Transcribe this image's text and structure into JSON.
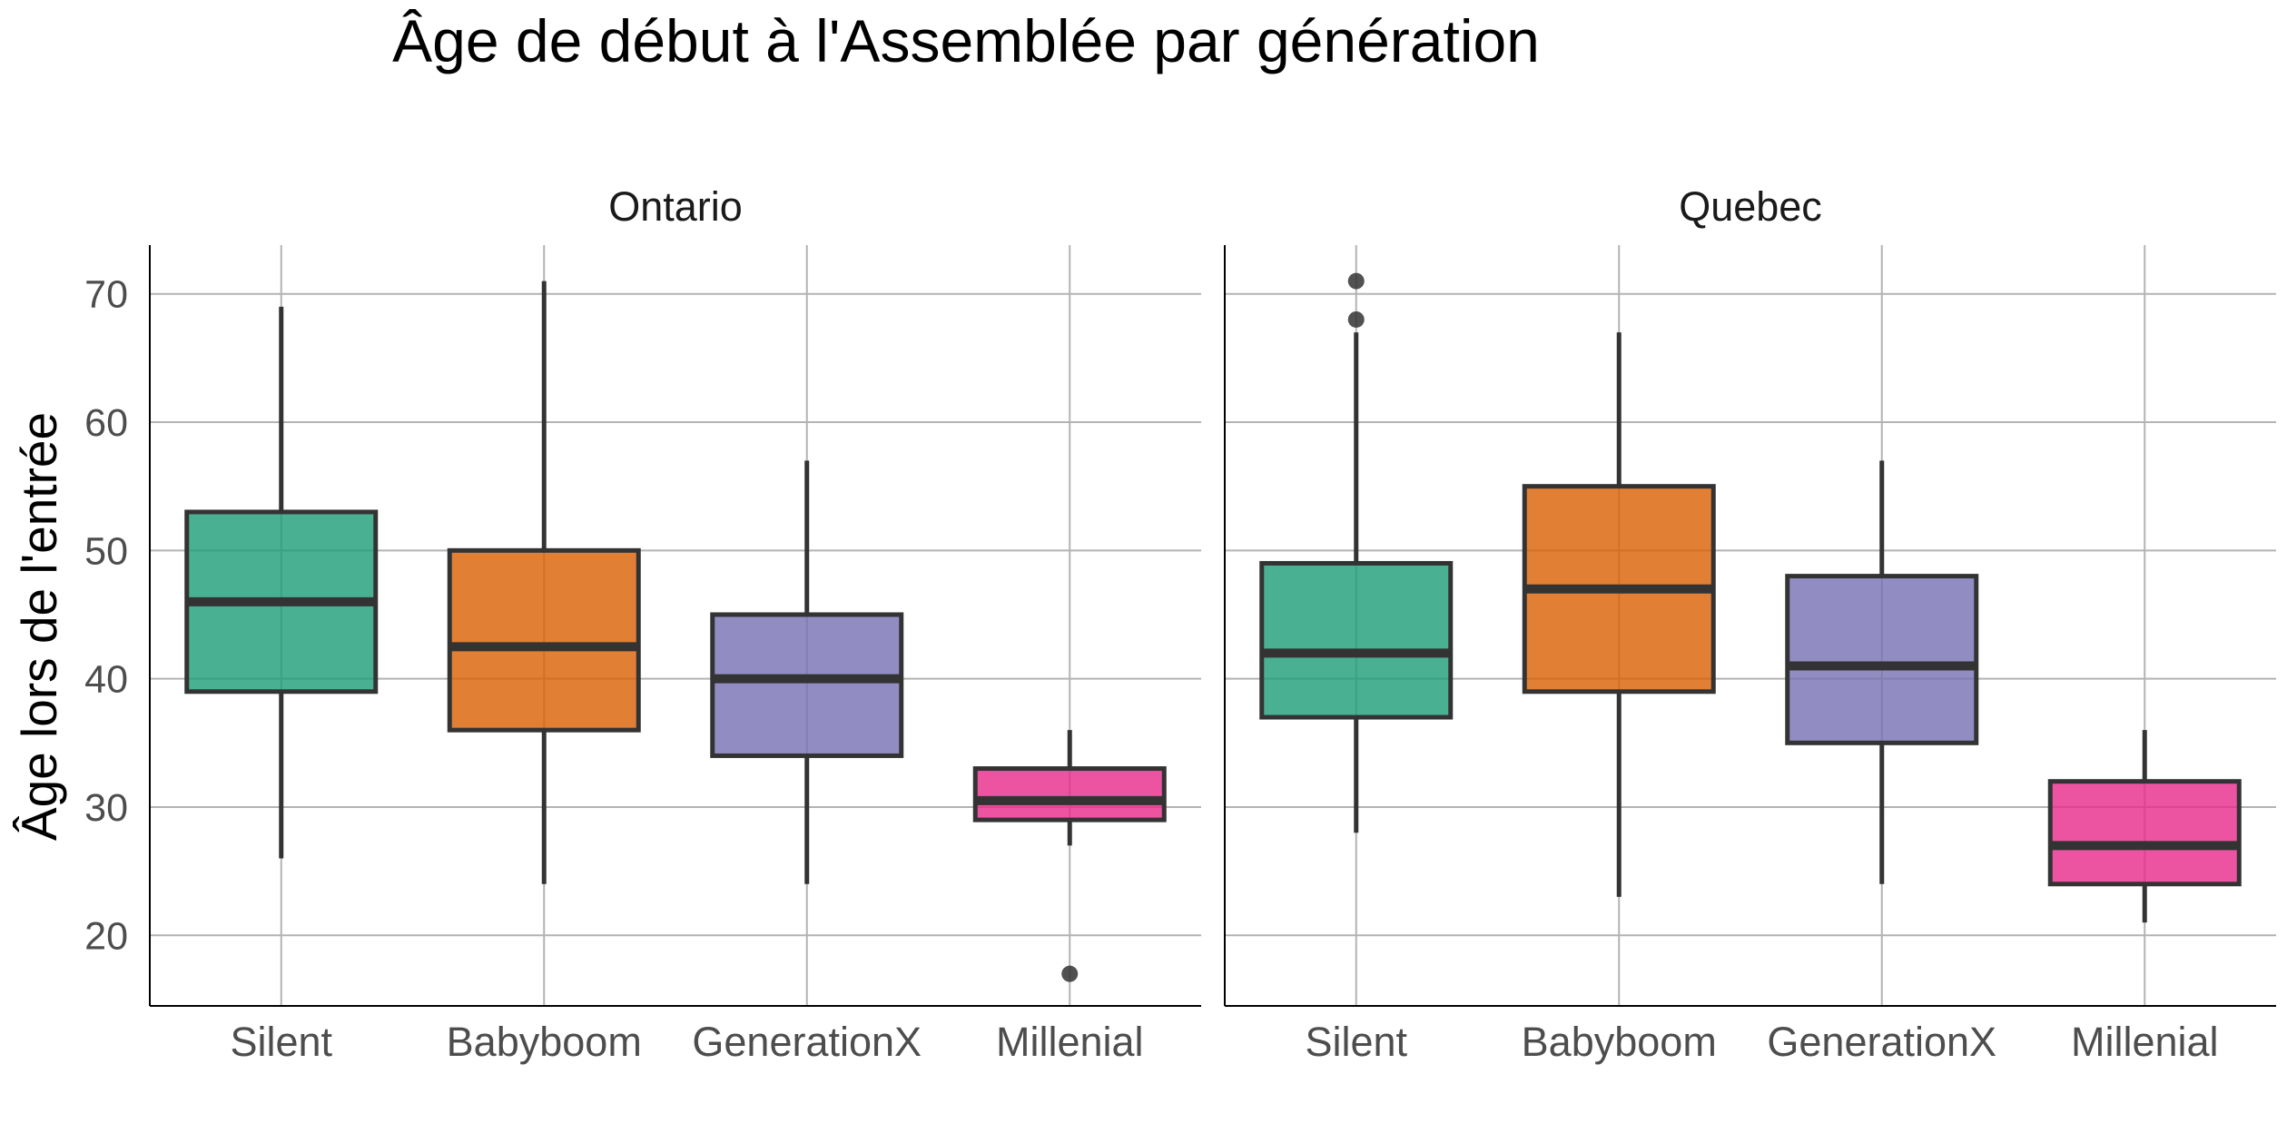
{
  "chart_data": {
    "type": "boxplot",
    "title": "Âge de début à l'Assemblée par génération",
    "ylabel": "Âge lors de l'entrée",
    "xlabel": "",
    "ylim": [
      14.5,
      73.8
    ],
    "yticks": [
      "20",
      "30",
      "40",
      "50",
      "60",
      "70"
    ],
    "grid": true,
    "legend": "none",
    "categories": [
      "Silent",
      "Babyboom",
      "GenerationX",
      "Millenial"
    ],
    "colors": {
      "Silent": "#1b9e77",
      "Babyboom": "#d95f02",
      "GenerationX": "#7570b3",
      "Millenial": "#e7298a"
    },
    "panels": [
      {
        "name": "Ontario",
        "boxes": [
          {
            "category": "Silent",
            "min": 26,
            "q1": 39,
            "median": 46,
            "q3": 53,
            "max": 69,
            "outliers": []
          },
          {
            "category": "Babyboom",
            "min": 24,
            "q1": 36,
            "median": 42.5,
            "q3": 50,
            "max": 71,
            "outliers": []
          },
          {
            "category": "GenerationX",
            "min": 24,
            "q1": 34,
            "median": 40,
            "q3": 45,
            "max": 57,
            "outliers": []
          },
          {
            "category": "Millenial",
            "min": 27,
            "q1": 29,
            "median": 30.5,
            "q3": 33,
            "max": 36,
            "outliers": [
              17
            ]
          }
        ]
      },
      {
        "name": "Quebec",
        "boxes": [
          {
            "category": "Silent",
            "min": 28,
            "q1": 37,
            "median": 42,
            "q3": 49,
            "max": 67,
            "outliers": [
              68,
              71
            ]
          },
          {
            "category": "Babyboom",
            "min": 23,
            "q1": 39,
            "median": 47,
            "q3": 55,
            "max": 67,
            "outliers": []
          },
          {
            "category": "GenerationX",
            "min": 24,
            "q1": 35,
            "median": 41,
            "q3": 48,
            "max": 57,
            "outliers": []
          },
          {
            "category": "Millenial",
            "min": 21,
            "q1": 24,
            "median": 27,
            "q3": 32,
            "max": 36,
            "outliers": []
          }
        ]
      }
    ]
  }
}
